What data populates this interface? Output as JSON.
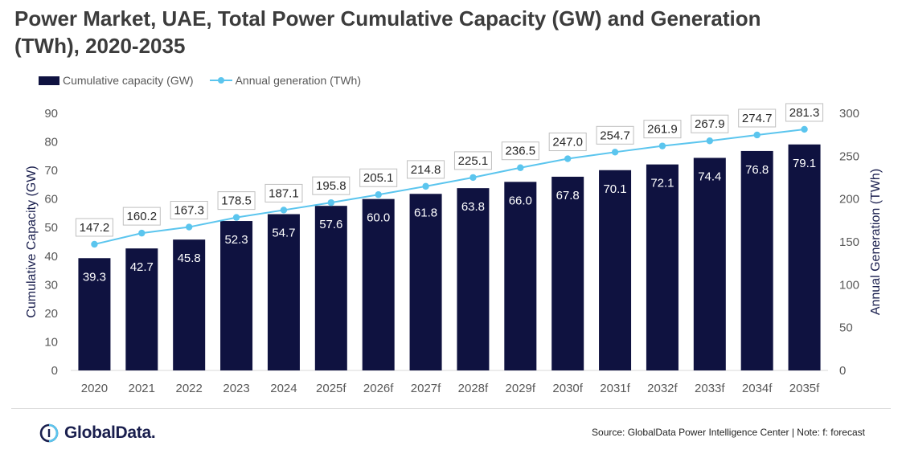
{
  "title": "Power Market, UAE, Total Power Cumulative Capacity (GW) and Generation (TWh), 2020-2035",
  "legend": {
    "capacity": "Cumulative capacity (GW)",
    "generation": "Annual generation (TWh)"
  },
  "source": "Source: GlobalData Power Intelligence Center | Note: f: forecast",
  "logo": {
    "text": "GlobalData.",
    "icon": "globaldata-logo-icon"
  },
  "colors": {
    "bar": "#0f1240",
    "line": "#5bc5ee",
    "axis_text": "#595959",
    "grid": "#d9d9d9"
  },
  "chart_data": {
    "type": "bar+line",
    "categories": [
      "2020",
      "2021",
      "2022",
      "2023",
      "2024",
      "2025f",
      "2026f",
      "2027f",
      "2028f",
      "2029f",
      "2030f",
      "2031f",
      "2032f",
      "2033f",
      "2034f",
      "2035f"
    ],
    "series": [
      {
        "name": "Cumulative capacity (GW)",
        "type": "bar",
        "axis": "left",
        "values": [
          39.3,
          42.7,
          45.8,
          52.3,
          54.7,
          57.6,
          60.0,
          61.8,
          63.8,
          66.0,
          67.8,
          70.1,
          72.1,
          74.4,
          76.8,
          79.1
        ]
      },
      {
        "name": "Annual generation (TWh)",
        "type": "line",
        "axis": "right",
        "values": [
          147.2,
          160.2,
          167.3,
          178.5,
          187.1,
          195.8,
          205.1,
          214.8,
          225.1,
          236.5,
          247.0,
          254.7,
          261.9,
          267.9,
          274.7,
          281.3
        ]
      }
    ],
    "ylabel_left": "Cumulative Capacity (GW)",
    "ylabel_right": "Annual Generation (TWh)",
    "ylim_left": [
      0,
      90
    ],
    "ylim_right": [
      0,
      300
    ],
    "yticks_left": [
      0,
      10,
      20,
      30,
      40,
      50,
      60,
      70,
      80,
      90
    ],
    "yticks_right": [
      0,
      50,
      100,
      150,
      200,
      250,
      300
    ],
    "grid": true,
    "legend_position": "top-left"
  }
}
